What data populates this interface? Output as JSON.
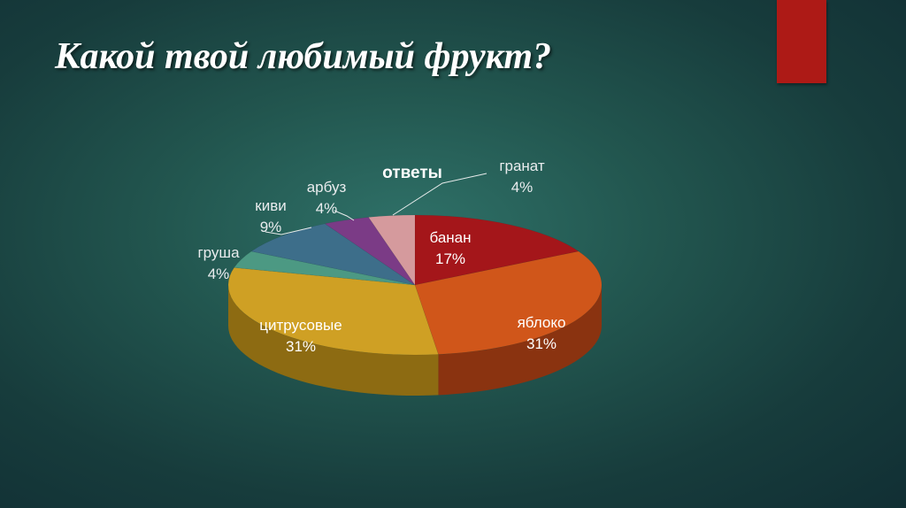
{
  "slide": {
    "title": "Какой твой любимый фрукт?"
  },
  "chart_data": {
    "type": "pie",
    "title": "ответы",
    "slices": [
      {
        "label": "банан",
        "value": 17,
        "pct": "17%",
        "color": "#a4161a",
        "side": "#6e0d0f"
      },
      {
        "label": "яблоко",
        "value": 31,
        "pct": "31%",
        "color": "#d0561a",
        "side": "#8a3310"
      },
      {
        "label": "цитрусовые",
        "value": 31,
        "pct": "31%",
        "color": "#cfa024",
        "side": "#8d6b12"
      },
      {
        "label": "груша",
        "value": 4,
        "pct": "4%",
        "color": "#4c9983",
        "side": "#2f6656"
      },
      {
        "label": "киви",
        "value": 9,
        "pct": "9%",
        "color": "#3d6e8a",
        "side": "#26475a"
      },
      {
        "label": "арбуз",
        "value": 4,
        "pct": "4%",
        "color": "#7b3b86",
        "side": "#4e2455"
      },
      {
        "label": "гранат",
        "value": 4,
        "pct": "4%",
        "color": "#d59a9d",
        "side": "#9a6a6c"
      }
    ]
  }
}
